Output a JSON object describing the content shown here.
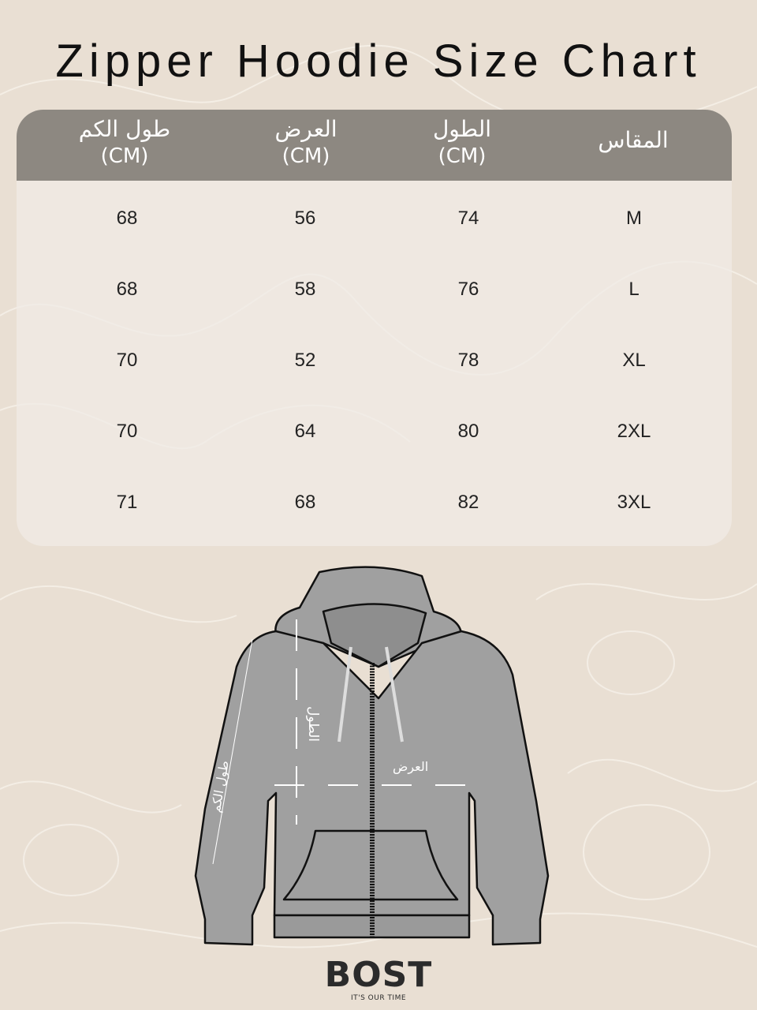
{
  "title": "Zipper Hoodie Size Chart",
  "colors": {
    "background": "#e9dfd3",
    "header": "#8d8881",
    "hoodie": "#a0a0a0"
  },
  "table": {
    "headers": [
      {
        "label": "المقاس",
        "unit": ""
      },
      {
        "label": "الطول",
        "unit": "(CM)"
      },
      {
        "label": "العرض",
        "unit": "(CM)"
      },
      {
        "label": "طول الكم",
        "unit": "(CM)"
      }
    ],
    "rows": [
      {
        "size": "M",
        "length": "74",
        "width": "56",
        "sleeve": "68"
      },
      {
        "size": "L",
        "length": "76",
        "width": "58",
        "sleeve": "68"
      },
      {
        "size": "XL",
        "length": "78",
        "width": "52",
        "sleeve": "70"
      },
      {
        "size": "2XL",
        "length": "80",
        "width": "64",
        "sleeve": "70"
      },
      {
        "size": "3XL",
        "length": "82",
        "width": "68",
        "sleeve": "71"
      }
    ]
  },
  "diagram": {
    "length_label": "الطول",
    "width_label": "العرض",
    "sleeve_label": "طول الكم"
  },
  "brand": {
    "name": "BOST",
    "tagline": "IT'S OUR TIME"
  }
}
